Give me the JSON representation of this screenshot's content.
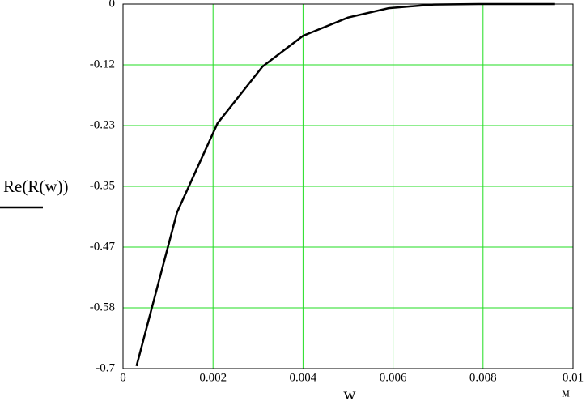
{
  "chart_data": {
    "type": "line",
    "x_label": "w",
    "x_unit": "м",
    "x": [
      0.0003,
      0.0012,
      0.0021,
      0.0031,
      0.004,
      0.005,
      0.0059,
      0.0069,
      0.0079,
      0.0096
    ],
    "series": [
      {
        "name": "Re(R(w))",
        "color": "#000000",
        "values": [
          -0.695,
          -0.4,
          -0.229,
          -0.12,
          -0.061,
          -0.026,
          -0.008,
          -0.001,
          0,
          0
        ]
      }
    ],
    "xlim": [
      0,
      0.01
    ],
    "xticks": [
      0,
      0.002,
      0.004,
      0.006,
      0.008,
      0.01
    ],
    "ylim": [
      -0.7,
      0
    ],
    "yticks": [
      0,
      {
        "value": -0.1167,
        "label": "-0.12"
      },
      {
        "value": -0.2333,
        "label": "-0.23"
      },
      -0.35,
      {
        "value": -0.4667,
        "label": "-0.47"
      },
      {
        "value": -0.5833,
        "label": "-0.58"
      },
      -0.7
    ],
    "grid": true,
    "grid_color": "#22dd22"
  }
}
